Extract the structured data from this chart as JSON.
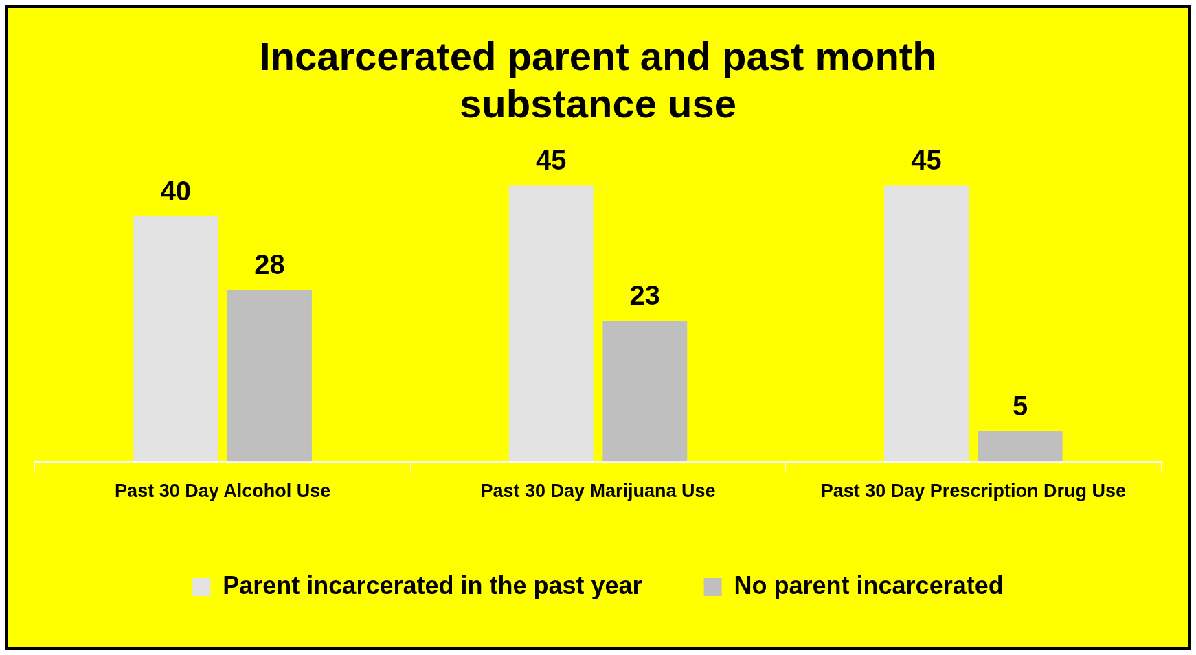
{
  "chart_data": {
    "type": "bar",
    "title": "Incarcerated parent and past month substance use",
    "categories": [
      "Past 30 Day Alcohol Use",
      "Past 30 Day Marijuana Use",
      "Past 30 Day Prescription Drug Use"
    ],
    "series": [
      {
        "name": "Parent incarcerated in the past year",
        "color": "#e3e3e3",
        "values": [
          40,
          45,
          45
        ]
      },
      {
        "name": "No parent incarcerated",
        "color": "#bfbfbf",
        "values": [
          28,
          23,
          5
        ]
      }
    ],
    "data_labels": true,
    "legend": "bottom"
  }
}
